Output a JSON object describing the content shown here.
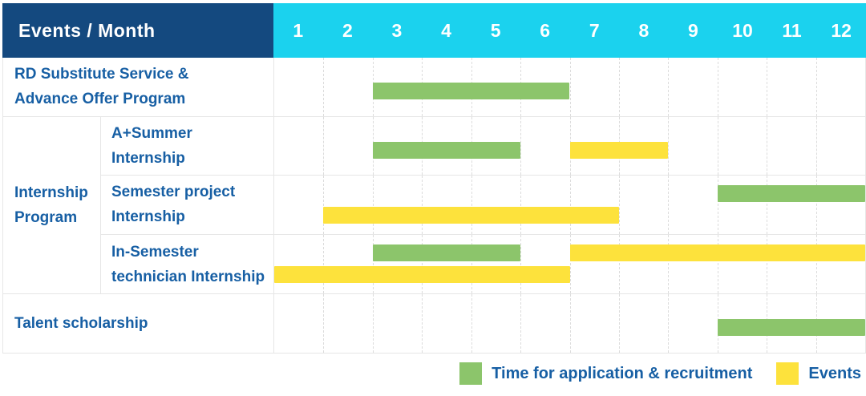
{
  "title": "Events / Month",
  "colors": {
    "header_bg": "#14497F",
    "months_bg": "#1BD2EE",
    "header_text": "#FFFFFF",
    "label_text": "#175FA4",
    "grid_line": "#E6E6E6",
    "column_dash": "#DCDCDC",
    "application_green": "#8CC56B",
    "events_yellow": "#FDE23C"
  },
  "chart_data": {
    "type": "gantt",
    "title": "Events / Month",
    "x_axis_unit": "Month",
    "months": [
      "1",
      "2",
      "3",
      "4",
      "5",
      "6",
      "7",
      "8",
      "9",
      "10",
      "11",
      "12"
    ],
    "x_range": [
      1,
      12
    ],
    "legend_position": "bottom-right",
    "legend": [
      {
        "key": "application",
        "label": "Time for application & recruitment",
        "color": "#8CC56B"
      },
      {
        "key": "events",
        "label": "Events",
        "color": "#FDE23C"
      }
    ],
    "rows": [
      {
        "label": "RD Substitute Service &\nAdvance Offer Program",
        "group": null,
        "lanes": 1,
        "bars": [
          {
            "type": "application",
            "start_month": 3,
            "end_month": 6,
            "lane": 0
          }
        ]
      },
      {
        "label": "A+Summer\nInternship",
        "group": "Internship\nProgram",
        "lanes": 1,
        "bars": [
          {
            "type": "application",
            "start_month": 3,
            "end_month": 5,
            "lane": 0
          },
          {
            "type": "events",
            "start_month": 7,
            "end_month": 8,
            "lane": 0
          }
        ]
      },
      {
        "label": "Semester project\nInternship",
        "group": "Internship\nProgram",
        "lanes": 2,
        "bars": [
          {
            "type": "application",
            "start_month": 10,
            "end_month": 12,
            "lane": 0
          },
          {
            "type": "events",
            "start_month": 2,
            "end_month": 7,
            "lane": 1
          }
        ]
      },
      {
        "label": "In-Semester\ntechnician Internship",
        "group": "Internship\nProgram",
        "lanes": 2,
        "bars": [
          {
            "type": "application",
            "start_month": 3,
            "end_month": 5,
            "lane": 0
          },
          {
            "type": "events",
            "start_month": 7,
            "end_month": 12,
            "lane": 0
          },
          {
            "type": "events",
            "start_month": 1,
            "end_month": 6,
            "lane": 1
          }
        ]
      },
      {
        "label": "Talent scholarship",
        "group": null,
        "lanes": 1,
        "bars": [
          {
            "type": "application",
            "start_month": 10,
            "end_month": 12,
            "lane": 0
          }
        ]
      }
    ]
  }
}
